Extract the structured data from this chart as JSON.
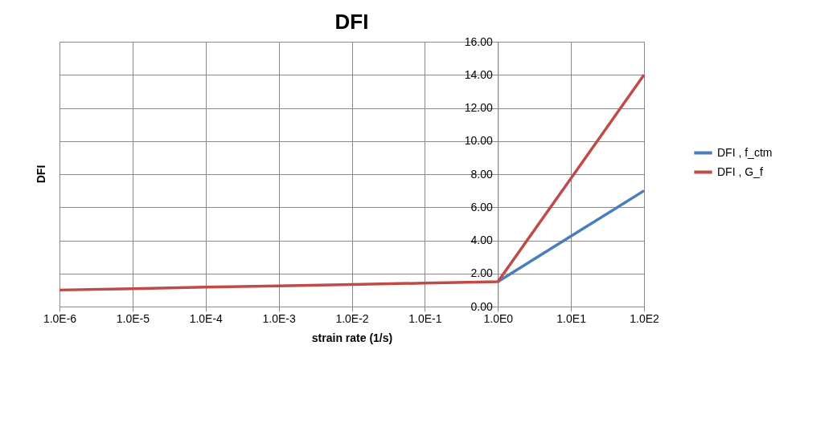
{
  "chart_data": {
    "type": "line",
    "title": "DFI",
    "xlabel": "strain rate (1/s)",
    "ylabel": "DFI",
    "x": [
      1e-06,
      1e-05,
      0.0001,
      0.001,
      0.01,
      0.1,
      1,
      10,
      100
    ],
    "series": [
      {
        "name": "DFI , f_ctm",
        "color": "#4a7ebb",
        "values": [
          null,
          null,
          null,
          null,
          null,
          null,
          1.5,
          4.25,
          7.0
        ]
      },
      {
        "name": "DFI , G_f",
        "color": "#be4b48",
        "values": [
          1.0,
          1.08,
          1.17,
          1.25,
          1.33,
          1.42,
          1.5,
          7.75,
          14.0
        ]
      }
    ],
    "log": "x",
    "xlim": [
      1e-06,
      100
    ],
    "xticks": [
      {
        "value": 1e-06,
        "label": "1.0E-6"
      },
      {
        "value": 1e-05,
        "label": "1.0E-5"
      },
      {
        "value": 0.0001,
        "label": "1.0E-4"
      },
      {
        "value": 0.001,
        "label": "1.0E-3"
      },
      {
        "value": 0.01,
        "label": "1.0E-2"
      },
      {
        "value": 0.1,
        "label": "1.0E-1"
      },
      {
        "value": 1,
        "label": "1.0E0"
      },
      {
        "value": 10,
        "label": "1.0E1"
      },
      {
        "value": 100,
        "label": "1.0E2"
      }
    ],
    "ylim": [
      0,
      16
    ],
    "yticks": [
      {
        "value": 0,
        "label": "0.00"
      },
      {
        "value": 2,
        "label": "2.00"
      },
      {
        "value": 4,
        "label": "4.00"
      },
      {
        "value": 6,
        "label": "6.00"
      },
      {
        "value": 8,
        "label": "8.00"
      },
      {
        "value": 10,
        "label": "10.00"
      },
      {
        "value": 12,
        "label": "12.00"
      },
      {
        "value": 14,
        "label": "14.00"
      },
      {
        "value": 16,
        "label": "16.00"
      }
    ],
    "grid": true,
    "legend": "right",
    "marker": "none",
    "line_style": "solid"
  }
}
